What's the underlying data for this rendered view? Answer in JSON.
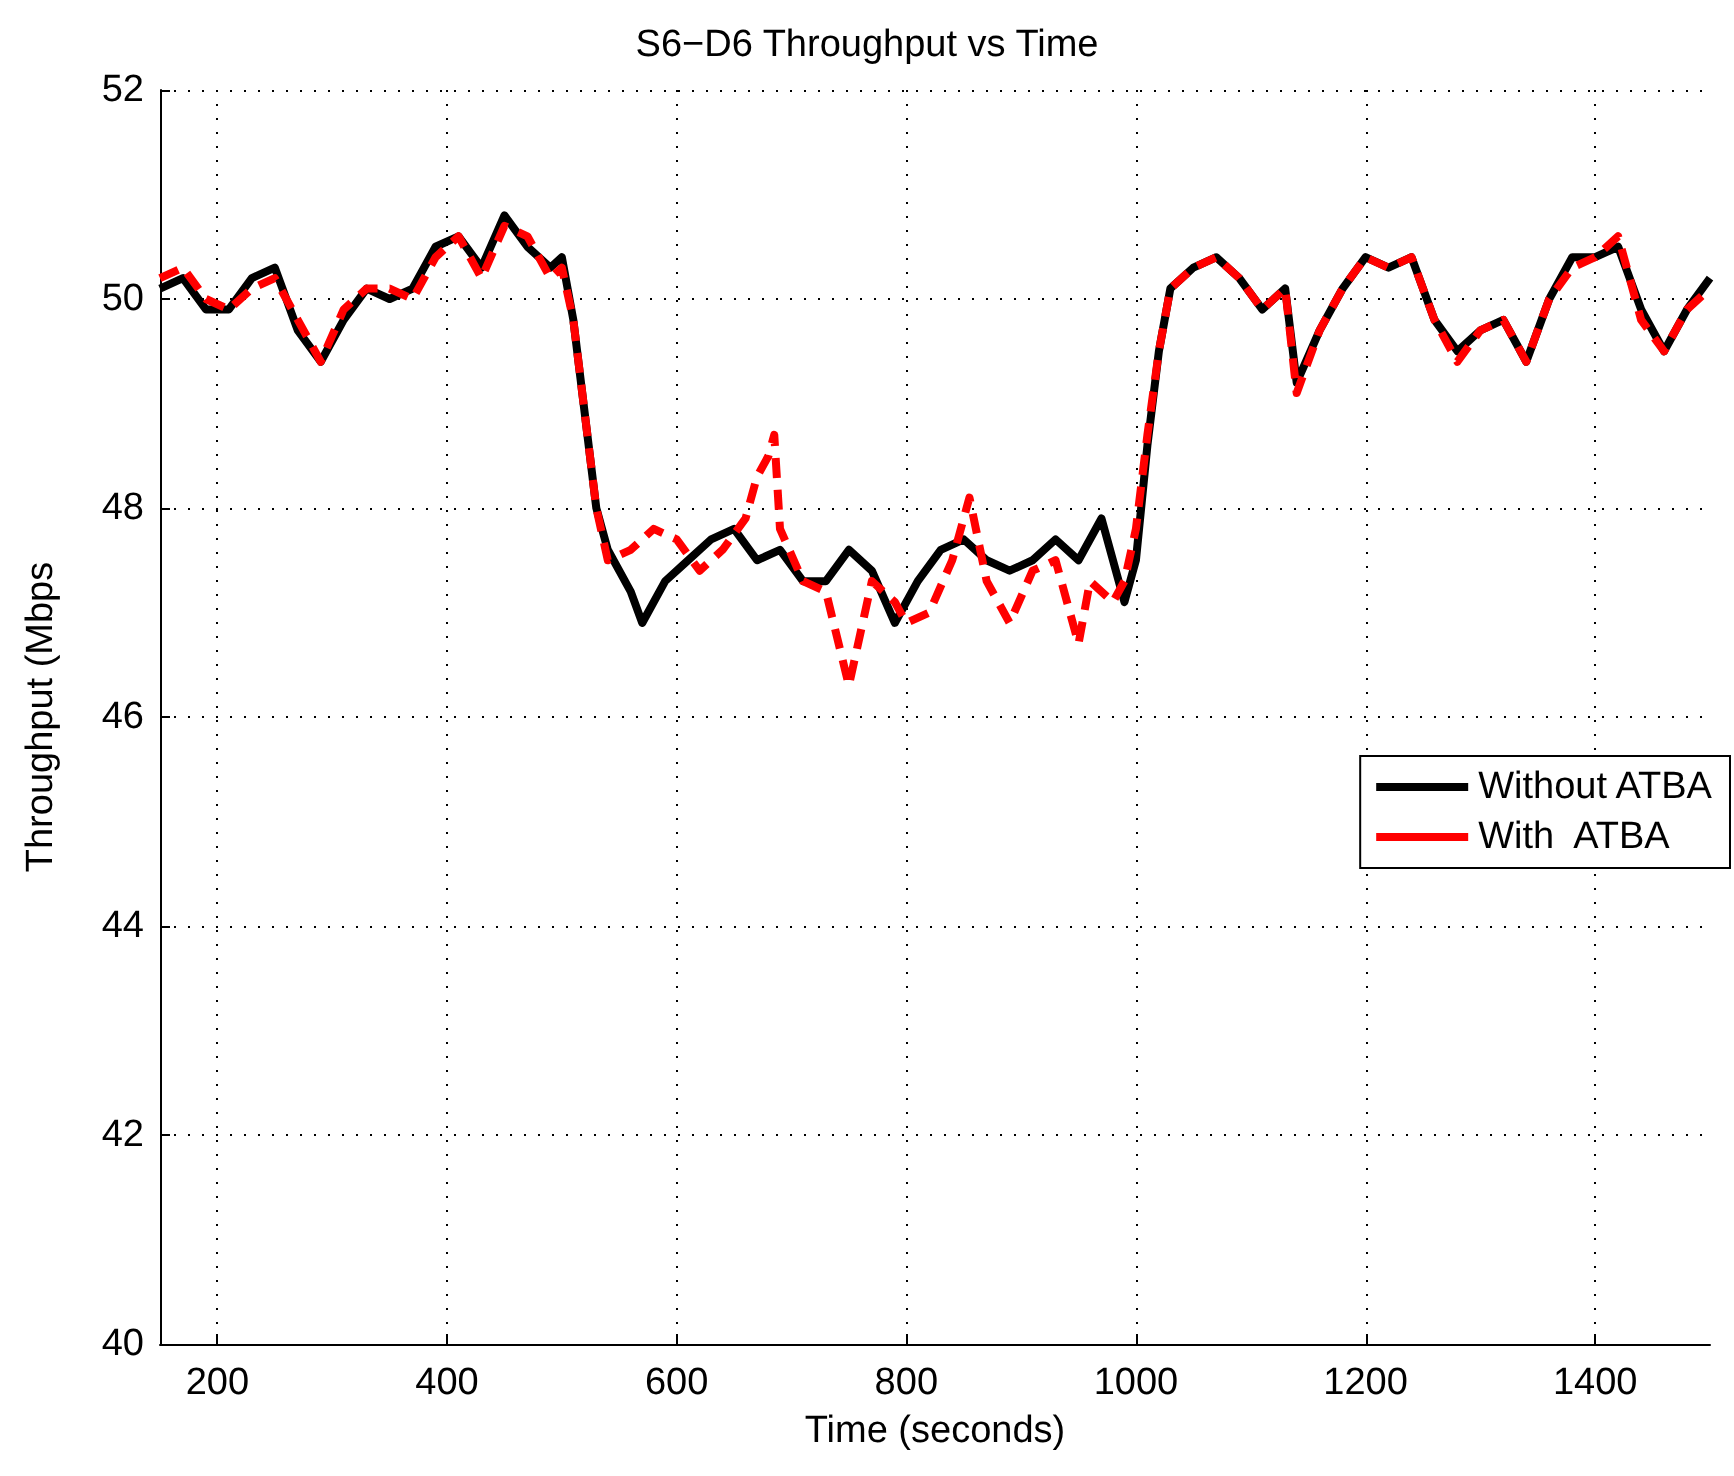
{
  "chart_data": {
    "type": "line",
    "title": "S6−D6 Throughput vs Time",
    "xlabel": "Time (seconds)",
    "ylabel": "Throughput (Mbps",
    "xlim": [
      150,
      1500
    ],
    "xticks": [
      200,
      400,
      600,
      800,
      1000,
      1200,
      1400
    ],
    "ylim": [
      40,
      52
    ],
    "yticks": [
      40,
      42,
      44,
      46,
      48,
      50,
      52
    ],
    "grid": true,
    "legend": "right",
    "marker": "none",
    "series": [
      {
        "name": "Without ATBA",
        "color": "#000000",
        "line_style": "solid",
        "x": [
          150,
          170,
          190,
          210,
          230,
          250,
          270,
          290,
          310,
          330,
          350,
          370,
          390,
          410,
          430,
          450,
          470,
          490,
          500,
          510,
          520,
          530,
          540,
          560,
          570,
          590,
          610,
          630,
          650,
          670,
          690,
          710,
          730,
          750,
          770,
          790,
          810,
          830,
          850,
          870,
          890,
          910,
          930,
          950,
          970,
          990,
          1000,
          1010,
          1020,
          1030,
          1050,
          1070,
          1090,
          1110,
          1130,
          1140,
          1160,
          1180,
          1200,
          1220,
          1240,
          1260,
          1280,
          1300,
          1320,
          1340,
          1360,
          1380,
          1400,
          1420,
          1440,
          1460,
          1480,
          1500
        ],
        "values": [
          50.1,
          50.2,
          49.9,
          49.9,
          50.2,
          50.3,
          49.7,
          49.4,
          49.8,
          50.1,
          50.0,
          50.1,
          50.5,
          50.6,
          50.3,
          50.8,
          50.5,
          50.3,
          50.4,
          49.8,
          48.9,
          48.0,
          47.6,
          47.2,
          46.9,
          47.3,
          47.5,
          47.7,
          47.8,
          47.5,
          47.6,
          47.3,
          47.3,
          47.6,
          47.4,
          46.9,
          47.3,
          47.6,
          47.7,
          47.5,
          47.4,
          47.5,
          47.7,
          47.5,
          47.9,
          47.1,
          47.5,
          48.6,
          49.5,
          50.1,
          50.3,
          50.4,
          50.2,
          49.9,
          50.1,
          49.2,
          49.7,
          50.1,
          50.4,
          50.3,
          50.4,
          49.8,
          49.5,
          49.7,
          49.8,
          49.4,
          50.0,
          50.4,
          50.4,
          50.5,
          49.9,
          49.5,
          49.9,
          50.2
        ]
      },
      {
        "name": "With  ATBA",
        "color": "#ff0000",
        "line_style": "dashed",
        "x": [
          150,
          170,
          190,
          210,
          230,
          250,
          270,
          290,
          310,
          330,
          350,
          370,
          390,
          410,
          430,
          450,
          470,
          490,
          500,
          510,
          520,
          530,
          540,
          560,
          580,
          600,
          620,
          640,
          660,
          670,
          680,
          685,
          690,
          710,
          730,
          750,
          760,
          770,
          790,
          800,
          820,
          840,
          855,
          870,
          890,
          910,
          930,
          950,
          960,
          980,
          990,
          1000,
          1010,
          1020,
          1030,
          1050,
          1070,
          1090,
          1110,
          1130,
          1140,
          1160,
          1180,
          1200,
          1220,
          1240,
          1260,
          1280,
          1300,
          1320,
          1340,
          1360,
          1380,
          1400,
          1420,
          1440,
          1460,
          1480,
          1500
        ],
        "values": [
          50.2,
          50.3,
          50.0,
          49.9,
          50.1,
          50.2,
          49.8,
          49.4,
          49.9,
          50.1,
          50.1,
          50.0,
          50.4,
          50.6,
          50.2,
          50.7,
          50.6,
          50.2,
          50.3,
          49.8,
          48.9,
          48.0,
          47.5,
          47.6,
          47.8,
          47.7,
          47.4,
          47.6,
          47.9,
          48.3,
          48.5,
          48.7,
          47.8,
          47.3,
          47.2,
          46.3,
          46.8,
          47.3,
          47.1,
          46.9,
          47.0,
          47.5,
          48.1,
          47.3,
          46.9,
          47.4,
          47.5,
          46.7,
          47.3,
          47.1,
          47.3,
          47.8,
          48.7,
          49.5,
          50.1,
          50.3,
          50.4,
          50.2,
          49.9,
          50.1,
          49.1,
          49.7,
          50.1,
          50.4,
          50.3,
          50.4,
          49.8,
          49.4,
          49.7,
          49.8,
          49.4,
          50.0,
          50.3,
          50.4,
          50.6,
          49.8,
          49.5,
          49.9,
          50.1
        ]
      }
    ]
  }
}
